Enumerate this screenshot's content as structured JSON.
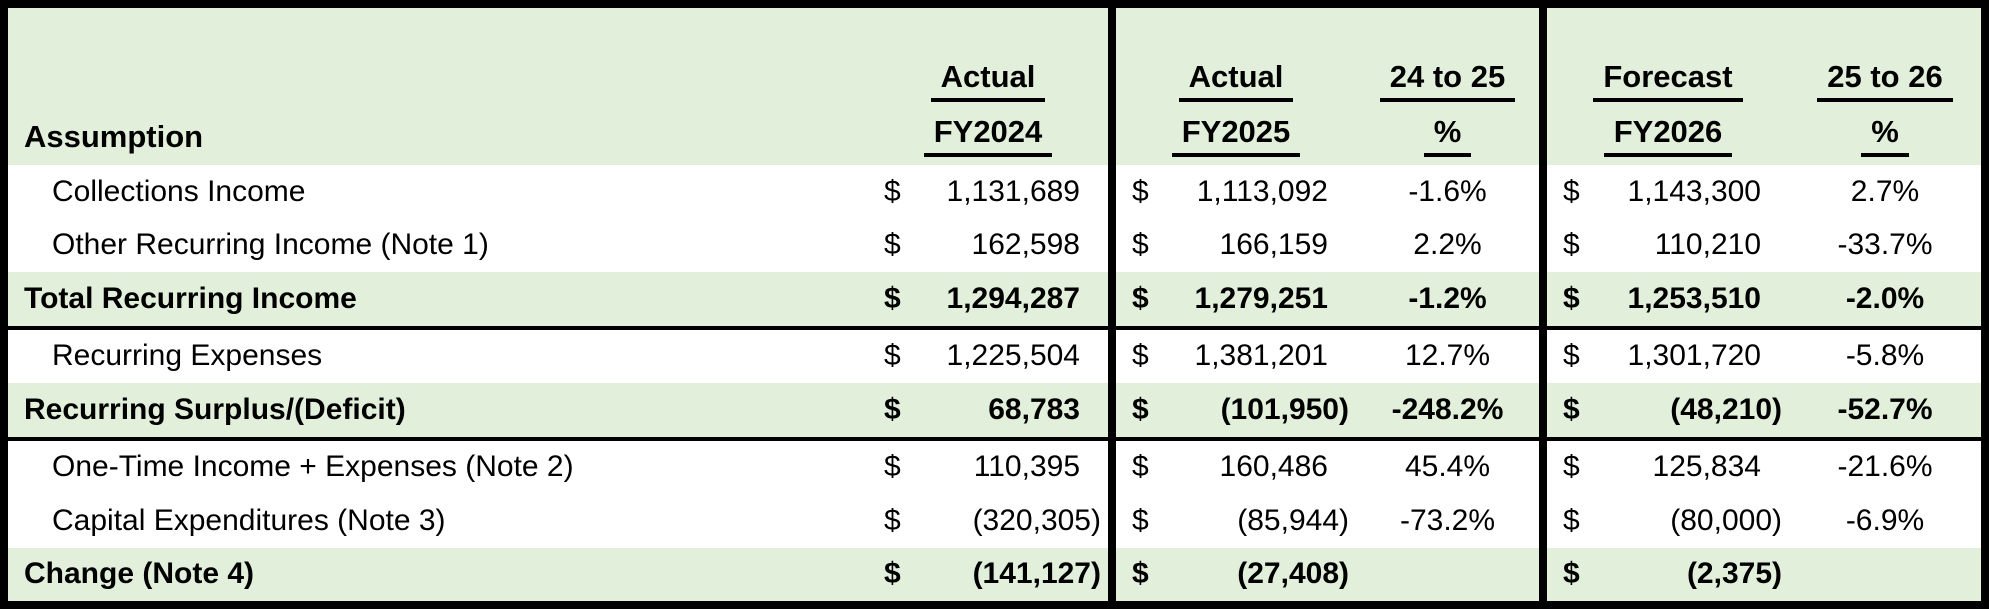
{
  "colors": {
    "row_green": "#E2EFDA",
    "row_white": "#FFFFFF",
    "border": "#000000"
  },
  "table": {
    "currency_symbol": "$",
    "header": {
      "assumption_label": "Assumption",
      "fy2024": {
        "line1": "Actual",
        "line2": "FY2024"
      },
      "fy2025": {
        "line1": "Actual",
        "line2": "FY2025"
      },
      "pct_24_25": {
        "line1": "24 to 25",
        "line2": "%"
      },
      "fy2026": {
        "line1": "Forecast",
        "line2": "FY2026"
      },
      "pct_25_26": {
        "line1": "25 to 26",
        "line2": "%"
      }
    },
    "rows": [
      {
        "label": "Collections Income",
        "fy2024": "1,131,689",
        "fy2025": "1,113,092",
        "pct_24_25": "-1.6%",
        "fy2026": "1,143,300",
        "pct_25_26": "2.7%"
      },
      {
        "label": "Other Recurring Income (Note 1)",
        "fy2024": "162,598",
        "fy2025": "166,159",
        "pct_24_25": "2.2%",
        "fy2026": "110,210",
        "pct_25_26": "-33.7%"
      },
      {
        "label": "Total Recurring Income",
        "fy2024": "1,294,287",
        "fy2025": "1,279,251",
        "pct_24_25": "-1.2%",
        "fy2026": "1,253,510",
        "pct_25_26": "-2.0%"
      },
      {
        "label": "Recurring Expenses",
        "fy2024": "1,225,504",
        "fy2025": "1,381,201",
        "pct_24_25": "12.7%",
        "fy2026": "1,301,720",
        "pct_25_26": "-5.8%"
      },
      {
        "label": "Recurring Surplus/(Deficit)",
        "fy2024": "68,783",
        "fy2025": "(101,950)",
        "pct_24_25": "-248.2%",
        "fy2026": "(48,210)",
        "pct_25_26": "-52.7%"
      },
      {
        "label": "One-Time Income + Expenses (Note 2)",
        "fy2024": "110,395",
        "fy2025": "160,486",
        "pct_24_25": "45.4%",
        "fy2026": "125,834",
        "pct_25_26": "-21.6%"
      },
      {
        "label": "Capital Expenditures (Note 3)",
        "fy2024": "(320,305)",
        "fy2025": "(85,944)",
        "pct_24_25": "-73.2%",
        "fy2026": "(80,000)",
        "pct_25_26": "-6.9%"
      },
      {
        "label": "Change (Note 4)",
        "fy2024": "(141,127)",
        "fy2025": "(27,408)",
        "pct_24_25": "",
        "fy2026": "(2,375)",
        "pct_25_26": ""
      }
    ]
  }
}
